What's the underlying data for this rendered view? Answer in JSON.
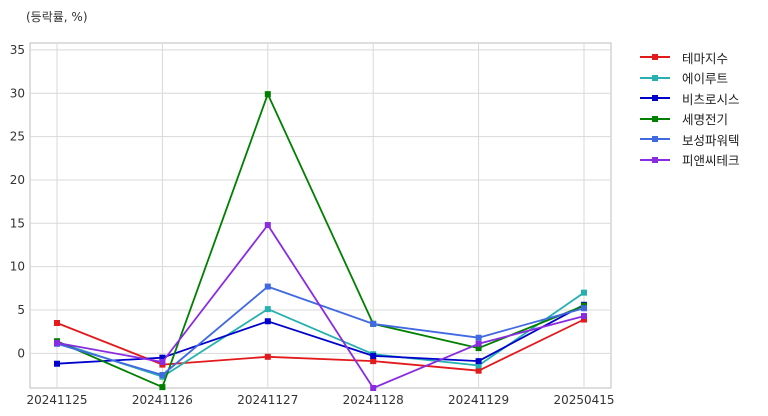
{
  "chart_data": {
    "type": "line",
    "ylabel": "(등락률, %)",
    "categories": [
      "20241125",
      "20241126",
      "20241127",
      "20241128",
      "20241129",
      "20250415"
    ],
    "yticks": [
      0,
      5,
      10,
      15,
      20,
      25,
      30,
      35
    ],
    "ylim": [
      -4,
      35.8
    ],
    "grid": true,
    "legend_position": "outside-top-right",
    "marker": "square",
    "series": [
      {
        "name": "테마지수",
        "color": "#e31a1c",
        "values": [
          3.5,
          -1.3,
          -0.4,
          -0.9,
          -2.0,
          3.9
        ]
      },
      {
        "name": "에이루트",
        "color": "#26b0b0",
        "values": [
          1.3,
          -2.7,
          5.1,
          -0.1,
          -1.4,
          7.0
        ]
      },
      {
        "name": "비츠로시스",
        "color": "#0000cd",
        "values": [
          -1.2,
          -0.5,
          3.7,
          -0.3,
          -0.9,
          5.6
        ]
      },
      {
        "name": "세명전기",
        "color": "#008000",
        "values": [
          1.4,
          -3.9,
          29.9,
          3.4,
          0.6,
          5.5
        ]
      },
      {
        "name": "보성파워텍",
        "color": "#4169e1",
        "values": [
          1.1,
          -2.5,
          7.7,
          3.4,
          1.8,
          5.2
        ]
      },
      {
        "name": "피앤씨테크",
        "color": "#8a2be2",
        "values": [
          1.2,
          -1.0,
          14.8,
          -4.0,
          1.1,
          4.3
        ]
      }
    ]
  }
}
